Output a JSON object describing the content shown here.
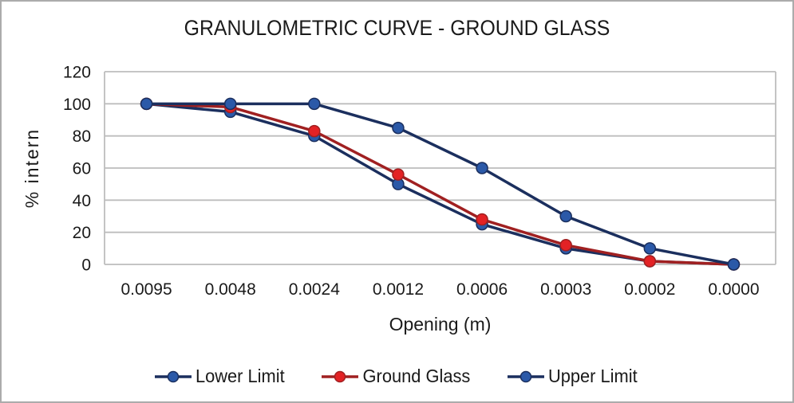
{
  "frame": {
    "background": "#ffffff",
    "border_color": "#ababab"
  },
  "chart_data": {
    "type": "line",
    "title": "GRANULOMETRIC CURVE - GROUND GLASS",
    "xlabel": "Opening (m)",
    "ylabel": "% intern",
    "categories": [
      "0.0095",
      "0.0048",
      "0.0024",
      "0.0012",
      "0.0006",
      "0.0003",
      "0.0002",
      "0.0000"
    ],
    "yticks": [
      0,
      20,
      40,
      60,
      80,
      100,
      120
    ],
    "ylim": [
      0,
      120
    ],
    "grid": "horizontal",
    "gridline_color": "#bdbdbd",
    "axis_color": "#bdbdbd",
    "text_color": "#1a1a1a",
    "legend_position": "bottom",
    "series": [
      {
        "name": "Lower Limit",
        "values": [
          100,
          95,
          80,
          50,
          25,
          10,
          2,
          0
        ],
        "line_color": "#1b2f5e",
        "marker_color": "#2b59a8",
        "marker": "circle"
      },
      {
        "name": "Ground Glass",
        "values": [
          100,
          98,
          83,
          56,
          28,
          12,
          2,
          0
        ],
        "line_color": "#a02021",
        "marker_color": "#e32225",
        "marker": "circle"
      },
      {
        "name": "Upper Limit",
        "values": [
          100,
          100,
          100,
          85,
          60,
          30,
          10,
          0
        ],
        "line_color": "#1b2f5e",
        "marker_color": "#2b59a8",
        "marker": "circle"
      }
    ]
  }
}
